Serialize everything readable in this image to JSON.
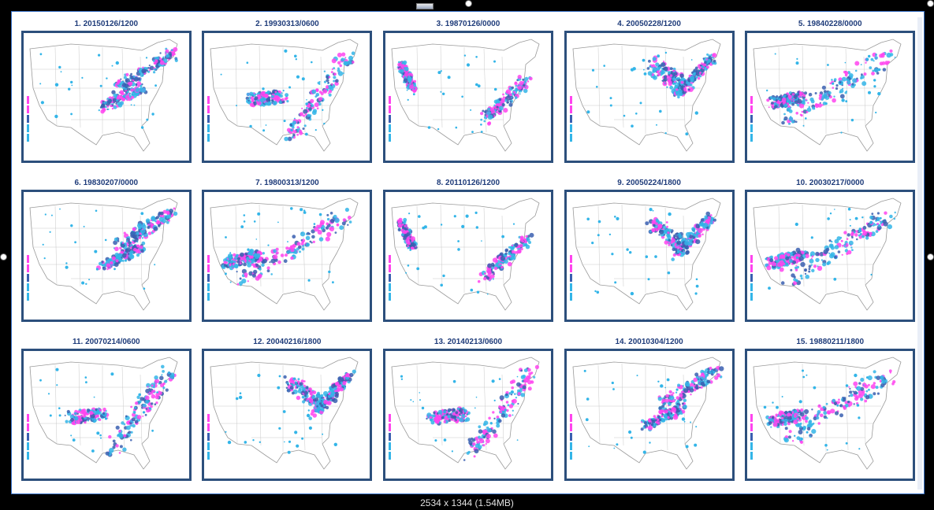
{
  "image_label": "2534 x 1344 (1.54MB)",
  "colors": {
    "frame_border": "#2c4f7c",
    "title_text": "#1f3c7a",
    "snow_light": "#33b5e8",
    "snow_medium": "#3a5fb0",
    "snow_heavy": "#ff44ee"
  },
  "panels": [
    {
      "title": "1. 20150126/1200",
      "variant": "northeast"
    },
    {
      "title": "2. 19930313/0600",
      "variant": "appalachian"
    },
    {
      "title": "3. 19870126/0000",
      "variant": "midatlantic"
    },
    {
      "title": "4. 20050228/1200",
      "variant": "lakes"
    },
    {
      "title": "5. 19840228/0000",
      "variant": "broad"
    },
    {
      "title": "6. 19830207/0000",
      "variant": "northeast"
    },
    {
      "title": "7. 19800313/1200",
      "variant": "broad"
    },
    {
      "title": "8. 20110126/1200",
      "variant": "midatlantic"
    },
    {
      "title": "9. 20050224/1800",
      "variant": "lakes"
    },
    {
      "title": "10. 20030217/0000",
      "variant": "broad"
    },
    {
      "title": "11. 20070214/0600",
      "variant": "appalachian"
    },
    {
      "title": "12. 20040216/1800",
      "variant": "lakes"
    },
    {
      "title": "13. 20140213/0600",
      "variant": "appalachian"
    },
    {
      "title": "14. 20010304/1200",
      "variant": "northeast"
    },
    {
      "title": "15. 19880211/1800",
      "variant": "broad"
    }
  ]
}
